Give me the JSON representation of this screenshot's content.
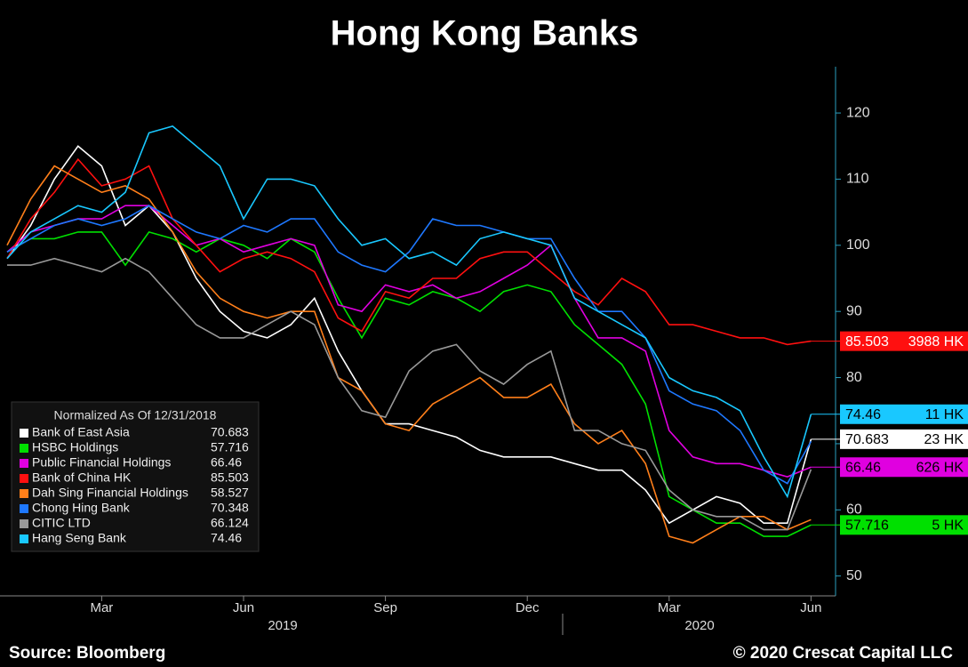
{
  "chart_data": {
    "type": "line",
    "title": "Hong Kong Banks",
    "source": "Source: Bloomberg",
    "copyright": "© 2020 Crescat Capital LLC",
    "legend_title": "Normalized As Of 12/31/2018",
    "categories": [
      null,
      null,
      null,
      null,
      "Mar",
      null,
      null,
      null,
      null,
      null,
      "Jun",
      null,
      null,
      null,
      null,
      null,
      "Sep",
      null,
      null,
      null,
      null,
      null,
      "Dec",
      null,
      null,
      null,
      null,
      null,
      "Mar",
      null,
      null,
      null,
      null,
      null,
      "Jun"
    ],
    "x_groups": [
      "2019",
      "2020"
    ],
    "ylim": [
      47,
      127
    ],
    "yticks": [
      50,
      60,
      70,
      80,
      90,
      100,
      110,
      120
    ],
    "series": [
      {
        "name": "Bank of East Asia",
        "color": "#ffffff",
        "end_label": "23 HK",
        "values": [
          98,
          103,
          110,
          115,
          112,
          103,
          106,
          102,
          95,
          90,
          87,
          86,
          88,
          92,
          84,
          78,
          73,
          73,
          72,
          71,
          69,
          68,
          68,
          68,
          67,
          66,
          66,
          63,
          58,
          60,
          62,
          61,
          58,
          58,
          70.683
        ]
      },
      {
        "name": "HSBC Holdings",
        "color": "#00e000",
        "end_label": "5 HK",
        "values": [
          99,
          101,
          101,
          102,
          102,
          97,
          102,
          101,
          99,
          101,
          100,
          98,
          101,
          99,
          92,
          86,
          92,
          91,
          93,
          92,
          90,
          93,
          94,
          93,
          88,
          85,
          82,
          76,
          62,
          60,
          58,
          58,
          56,
          56,
          57.716
        ]
      },
      {
        "name": "Public Financial Holdings",
        "color": "#e000e0",
        "end_label": "626 HK",
        "values": [
          99,
          102,
          103,
          104,
          104,
          106,
          106,
          103,
          100,
          101,
          99,
          100,
          101,
          100,
          91,
          90,
          94,
          93,
          94,
          92,
          93,
          95,
          97,
          100,
          92,
          86,
          86,
          84,
          72,
          68,
          67,
          67,
          66,
          65,
          66.46
        ]
      },
      {
        "name": "Bank of China HK",
        "color": "#ff1010",
        "end_label": "3988 HK",
        "values": [
          98,
          104,
          108,
          113,
          109,
          110,
          112,
          104,
          100,
          96,
          98,
          99,
          98,
          96,
          89,
          87,
          93,
          92,
          95,
          95,
          98,
          99,
          99,
          96,
          93,
          91,
          95,
          93,
          88,
          88,
          87,
          86,
          86,
          85,
          85.503
        ]
      },
      {
        "name": "Dah Sing Financial Holdings",
        "color": "#ff7f1a",
        "values": [
          100,
          107,
          112,
          110,
          108,
          109,
          107,
          102,
          96,
          92,
          90,
          89,
          90,
          90,
          80,
          78,
          73,
          72,
          76,
          78,
          80,
          77,
          77,
          79,
          73,
          70,
          72,
          67,
          56,
          55,
          57,
          59,
          59,
          57,
          58.527
        ]
      },
      {
        "name": "Chong Hing Bank",
        "color": "#1e78ff",
        "values": [
          99,
          101,
          103,
          104,
          103,
          104,
          106,
          104,
          102,
          101,
          103,
          102,
          104,
          104,
          99,
          97,
          96,
          99,
          104,
          103,
          103,
          102,
          101,
          101,
          95,
          90,
          90,
          86,
          78,
          76,
          75,
          72,
          66,
          64,
          70.348
        ]
      },
      {
        "name": "CITIC LTD",
        "color": "#999999",
        "values": [
          97,
          97,
          98,
          97,
          96,
          98,
          96,
          92,
          88,
          86,
          86,
          88,
          90,
          88,
          80,
          75,
          74,
          81,
          84,
          85,
          81,
          79,
          82,
          84,
          72,
          72,
          70,
          69,
          63,
          60,
          59,
          59,
          57,
          57,
          66.124
        ]
      },
      {
        "name": "Hang Seng Bank",
        "color": "#19c8ff",
        "end_label": "11 HK",
        "values": [
          98,
          102,
          104,
          106,
          105,
          108,
          117,
          118,
          115,
          112,
          104,
          110,
          110,
          109,
          104,
          100,
          101,
          98,
          99,
          97,
          101,
          102,
          101,
          100,
          92,
          90,
          88,
          86,
          80,
          78,
          77,
          75,
          68,
          62,
          74.46
        ]
      }
    ]
  }
}
